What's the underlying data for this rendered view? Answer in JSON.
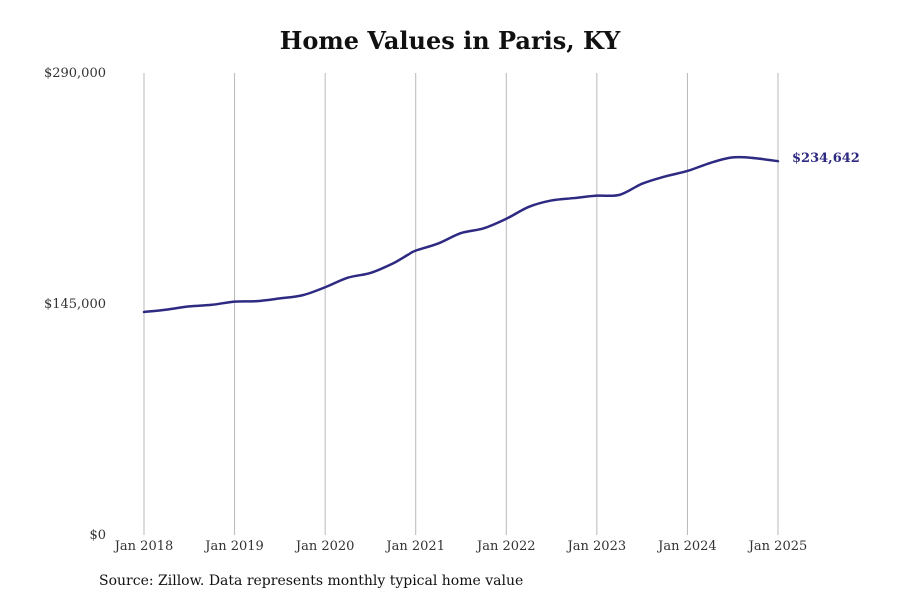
{
  "chart_data": {
    "type": "line",
    "title": "Home Values in Paris, KY",
    "xlabel": "",
    "ylabel": "",
    "x_ticks": [
      "Jan 2018",
      "Jan 2019",
      "Jan 2020",
      "Jan 2021",
      "Jan 2022",
      "Jan 2023",
      "Jan 2024",
      "Jan 2025"
    ],
    "y_ticks": [
      "$0",
      "$145,000",
      "$290,000"
    ],
    "ylim": [
      0,
      290000
    ],
    "xlim": [
      "2018-01",
      "2025-01"
    ],
    "grid": "vertical",
    "line_color": "#2e2a82",
    "series": [
      {
        "name": "",
        "x": [
          "2018-01",
          "2018-04",
          "2018-07",
          "2018-10",
          "2019-01",
          "2019-04",
          "2019-07",
          "2019-10",
          "2020-01",
          "2020-04",
          "2020-07",
          "2020-10",
          "2020-12",
          "2021-01",
          "2021-04",
          "2021-07",
          "2021-10",
          "2022-01",
          "2022-04",
          "2022-07",
          "2022-10",
          "2023-01",
          "2023-04",
          "2023-07",
          "2023-10",
          "2024-01",
          "2024-04",
          "2024-07",
          "2024-10",
          "2025-01"
        ],
        "values": [
          140000,
          141500,
          143500,
          144500,
          146500,
          146800,
          148500,
          150500,
          155500,
          161500,
          164500,
          170500,
          176000,
          178500,
          183000,
          189500,
          192500,
          198500,
          206000,
          210000,
          211500,
          213000,
          213500,
          220500,
          225000,
          228500,
          233500,
          237000,
          236500,
          234642
        ]
      }
    ],
    "annotations": [
      {
        "text": "$234,642",
        "x": "2025-01",
        "y": 234642
      }
    ]
  },
  "source_note": "Source: Zillow. Data represents monthly typical home value"
}
